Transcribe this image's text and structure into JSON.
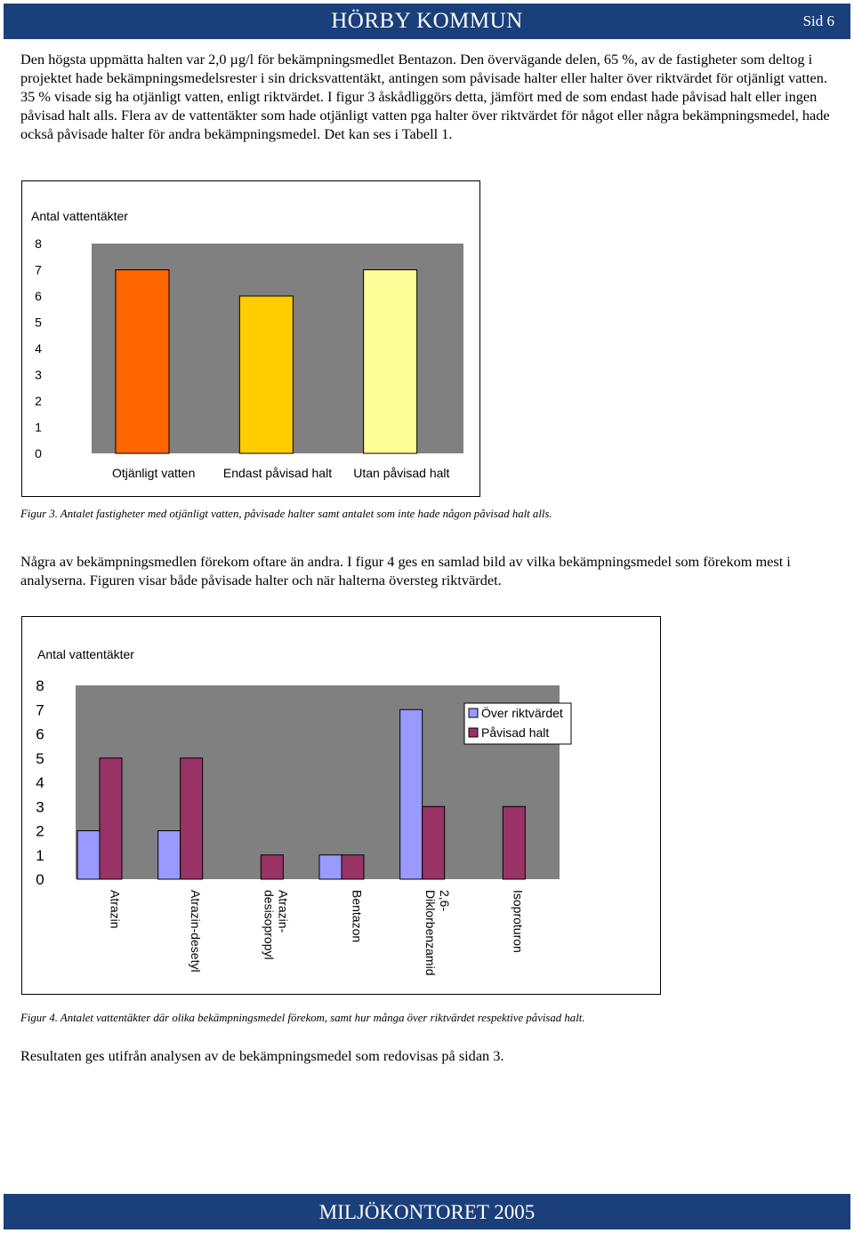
{
  "header": {
    "title": "HÖRBY KOMMUN",
    "page_label": "Sid 6"
  },
  "paragraphs": {
    "p1": "Den högsta uppmätta halten var 2,0 µg/l för bekämpningsmedlet Bentazon. Den övervägande delen, 65 %, av de fastigheter som deltog i projektet hade bekämpningsmedelsrester i sin dricksvattentäkt, antingen som påvisade halter eller halter över riktvärdet för otjänligt vatten. 35 % visade sig ha otjänligt vatten, enligt riktvärdet. I figur 3 åskådliggörs detta, jämfört med de som endast hade påvisad halt eller ingen påvisad halt alls. Flera av de vattentäkter som hade otjänligt vatten pga halter över riktvärdet för något eller några bekämpningsmedel, hade också påvisade halter för andra bekämpningsmedel. Det kan ses i Tabell 1.",
    "p2": "Några av bekämpningsmedlen förekom oftare än andra. I figur 4 ges en samlad bild av vilka bekämpningsmedel som förekom mest i analyserna. Figuren visar både påvisade halter och när halterna översteg riktvärdet.",
    "p3": "Resultaten ges utifrån analysen av de bekämpningsmedel som redovisas på sidan 3."
  },
  "captions": {
    "fig3": "Figur 3. Antalet fastigheter med otjänligt vatten, påvisade halter samt antalet som inte hade någon påvisad halt alls.",
    "fig4": "Figur 4. Antalet vattentäkter där olika bekämpningsmedel förekom, samt hur många över riktvärdet respektive påvisad halt."
  },
  "footer": {
    "title": "MILJÖKONTORET 2005"
  },
  "chart_data": [
    {
      "type": "bar",
      "ylabel": "Antal vattentäkter",
      "ylim": [
        0,
        8
      ],
      "yticks": [
        "0",
        "1",
        "2",
        "3",
        "4",
        "5",
        "6",
        "7",
        "8"
      ],
      "categories": [
        "Otjänligt vatten",
        "Endast påvisad halt",
        "Utan påvisad halt"
      ],
      "values": [
        7,
        6,
        7
      ],
      "colors": [
        "#ff6600",
        "#ffcc00",
        "#ffff99"
      ],
      "background": "#808080"
    },
    {
      "type": "bar",
      "ylabel": "Antal vattentäkter",
      "ylim": [
        0,
        8
      ],
      "yticks": [
        "0",
        "1",
        "2",
        "3",
        "4",
        "5",
        "6",
        "7",
        "8"
      ],
      "categories": [
        "Atrazin",
        "Atrazin-desetyl",
        "Atrazin-desisopropyl",
        "Bentazon",
        "2,6-Diklorbenzamid",
        "Isoproturon"
      ],
      "category_lines": [
        [
          "Atrazin"
        ],
        [
          "Atrazin-desetyl"
        ],
        [
          "Atrazin-",
          "desisopropyl"
        ],
        [
          "Bentazon"
        ],
        [
          "2,6-",
          "Diklorbenzamid"
        ],
        [
          "Isoproturon"
        ]
      ],
      "series": [
        {
          "name": "Över riktvärdet",
          "values": [
            2,
            2,
            0,
            1,
            7,
            0
          ],
          "color": "#9999ff"
        },
        {
          "name": "Påvisad halt",
          "values": [
            5,
            5,
            1,
            1,
            3,
            3
          ],
          "color": "#993366"
        }
      ],
      "legend": "top-right",
      "background": "#808080"
    }
  ]
}
